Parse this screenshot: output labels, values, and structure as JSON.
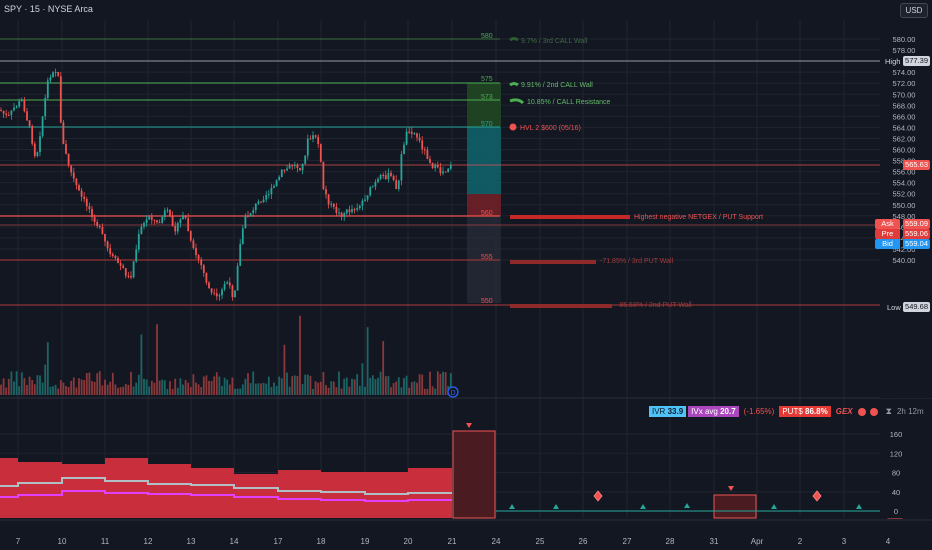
{
  "header": {
    "symbol": "SPY · 15 · NYSE Arca",
    "currency": "USD"
  },
  "colors": {
    "up": "#26a69a",
    "down": "#ef5350",
    "background": "#131722",
    "grid": "#1f2430"
  },
  "price_axis": {
    "labels": [
      "580.00",
      "578.00",
      "576.00",
      "574.00",
      "572.00",
      "570.00",
      "568.00",
      "566.00",
      "564.00",
      "562.00",
      "560.00",
      "558.00",
      "556.00",
      "554.00",
      "552.00",
      "550.00",
      "548.00",
      "546.00",
      "544.00",
      "542.00",
      "540.00"
    ]
  },
  "price_tags": {
    "high_label": "High",
    "high_value": "577.39",
    "last_value": "565.63",
    "ask_label": "Ask",
    "ask_value": "559.09",
    "pre_label": "Pre",
    "pre_value": "559.06",
    "bid_label": "Bid",
    "bid_value": "559.04",
    "low_label": "Low",
    "low_value": "549.68"
  },
  "levels": {
    "l580": "580",
    "l575": "575",
    "l573": "573",
    "l570": "570",
    "l560": "560",
    "l555": "555",
    "l550": "550",
    "call_wall_3rd": "9.7% / 3rd CALL Wall",
    "call_wall_2nd": "9.91% / 2nd CALL Wall",
    "call_resistance": "10.85% / CALL Resistance",
    "hvl": "HVL 2 $600 (05/16)",
    "put_support": "Highest negative NETGEX / PUT Support",
    "put_wall_3rd": "-71.85% / 3rd PUT Wall",
    "put_wall_2nd": "-85.58% / 2nd PUT Wall"
  },
  "stats": {
    "ivr_label": "IVR",
    "ivr_value": "33.9",
    "ivx_label": "IVx avg",
    "ivx_value": "20.7",
    "change": "(-1.65%)",
    "puts_label": "PUT$",
    "puts_value": "86.8%",
    "gex_label": "GEX",
    "timer": "2h 12m"
  },
  "lower_axis": {
    "labels": [
      "160",
      "120",
      "80",
      "40",
      "0"
    ]
  },
  "time_axis": {
    "labels": [
      "7",
      "10",
      "11",
      "12",
      "13",
      "14",
      "17",
      "18",
      "19",
      "20",
      "21",
      "24",
      "25",
      "26",
      "27",
      "28",
      "31",
      "Apr",
      "2",
      "3",
      "4"
    ]
  },
  "volume_marker": "D"
}
